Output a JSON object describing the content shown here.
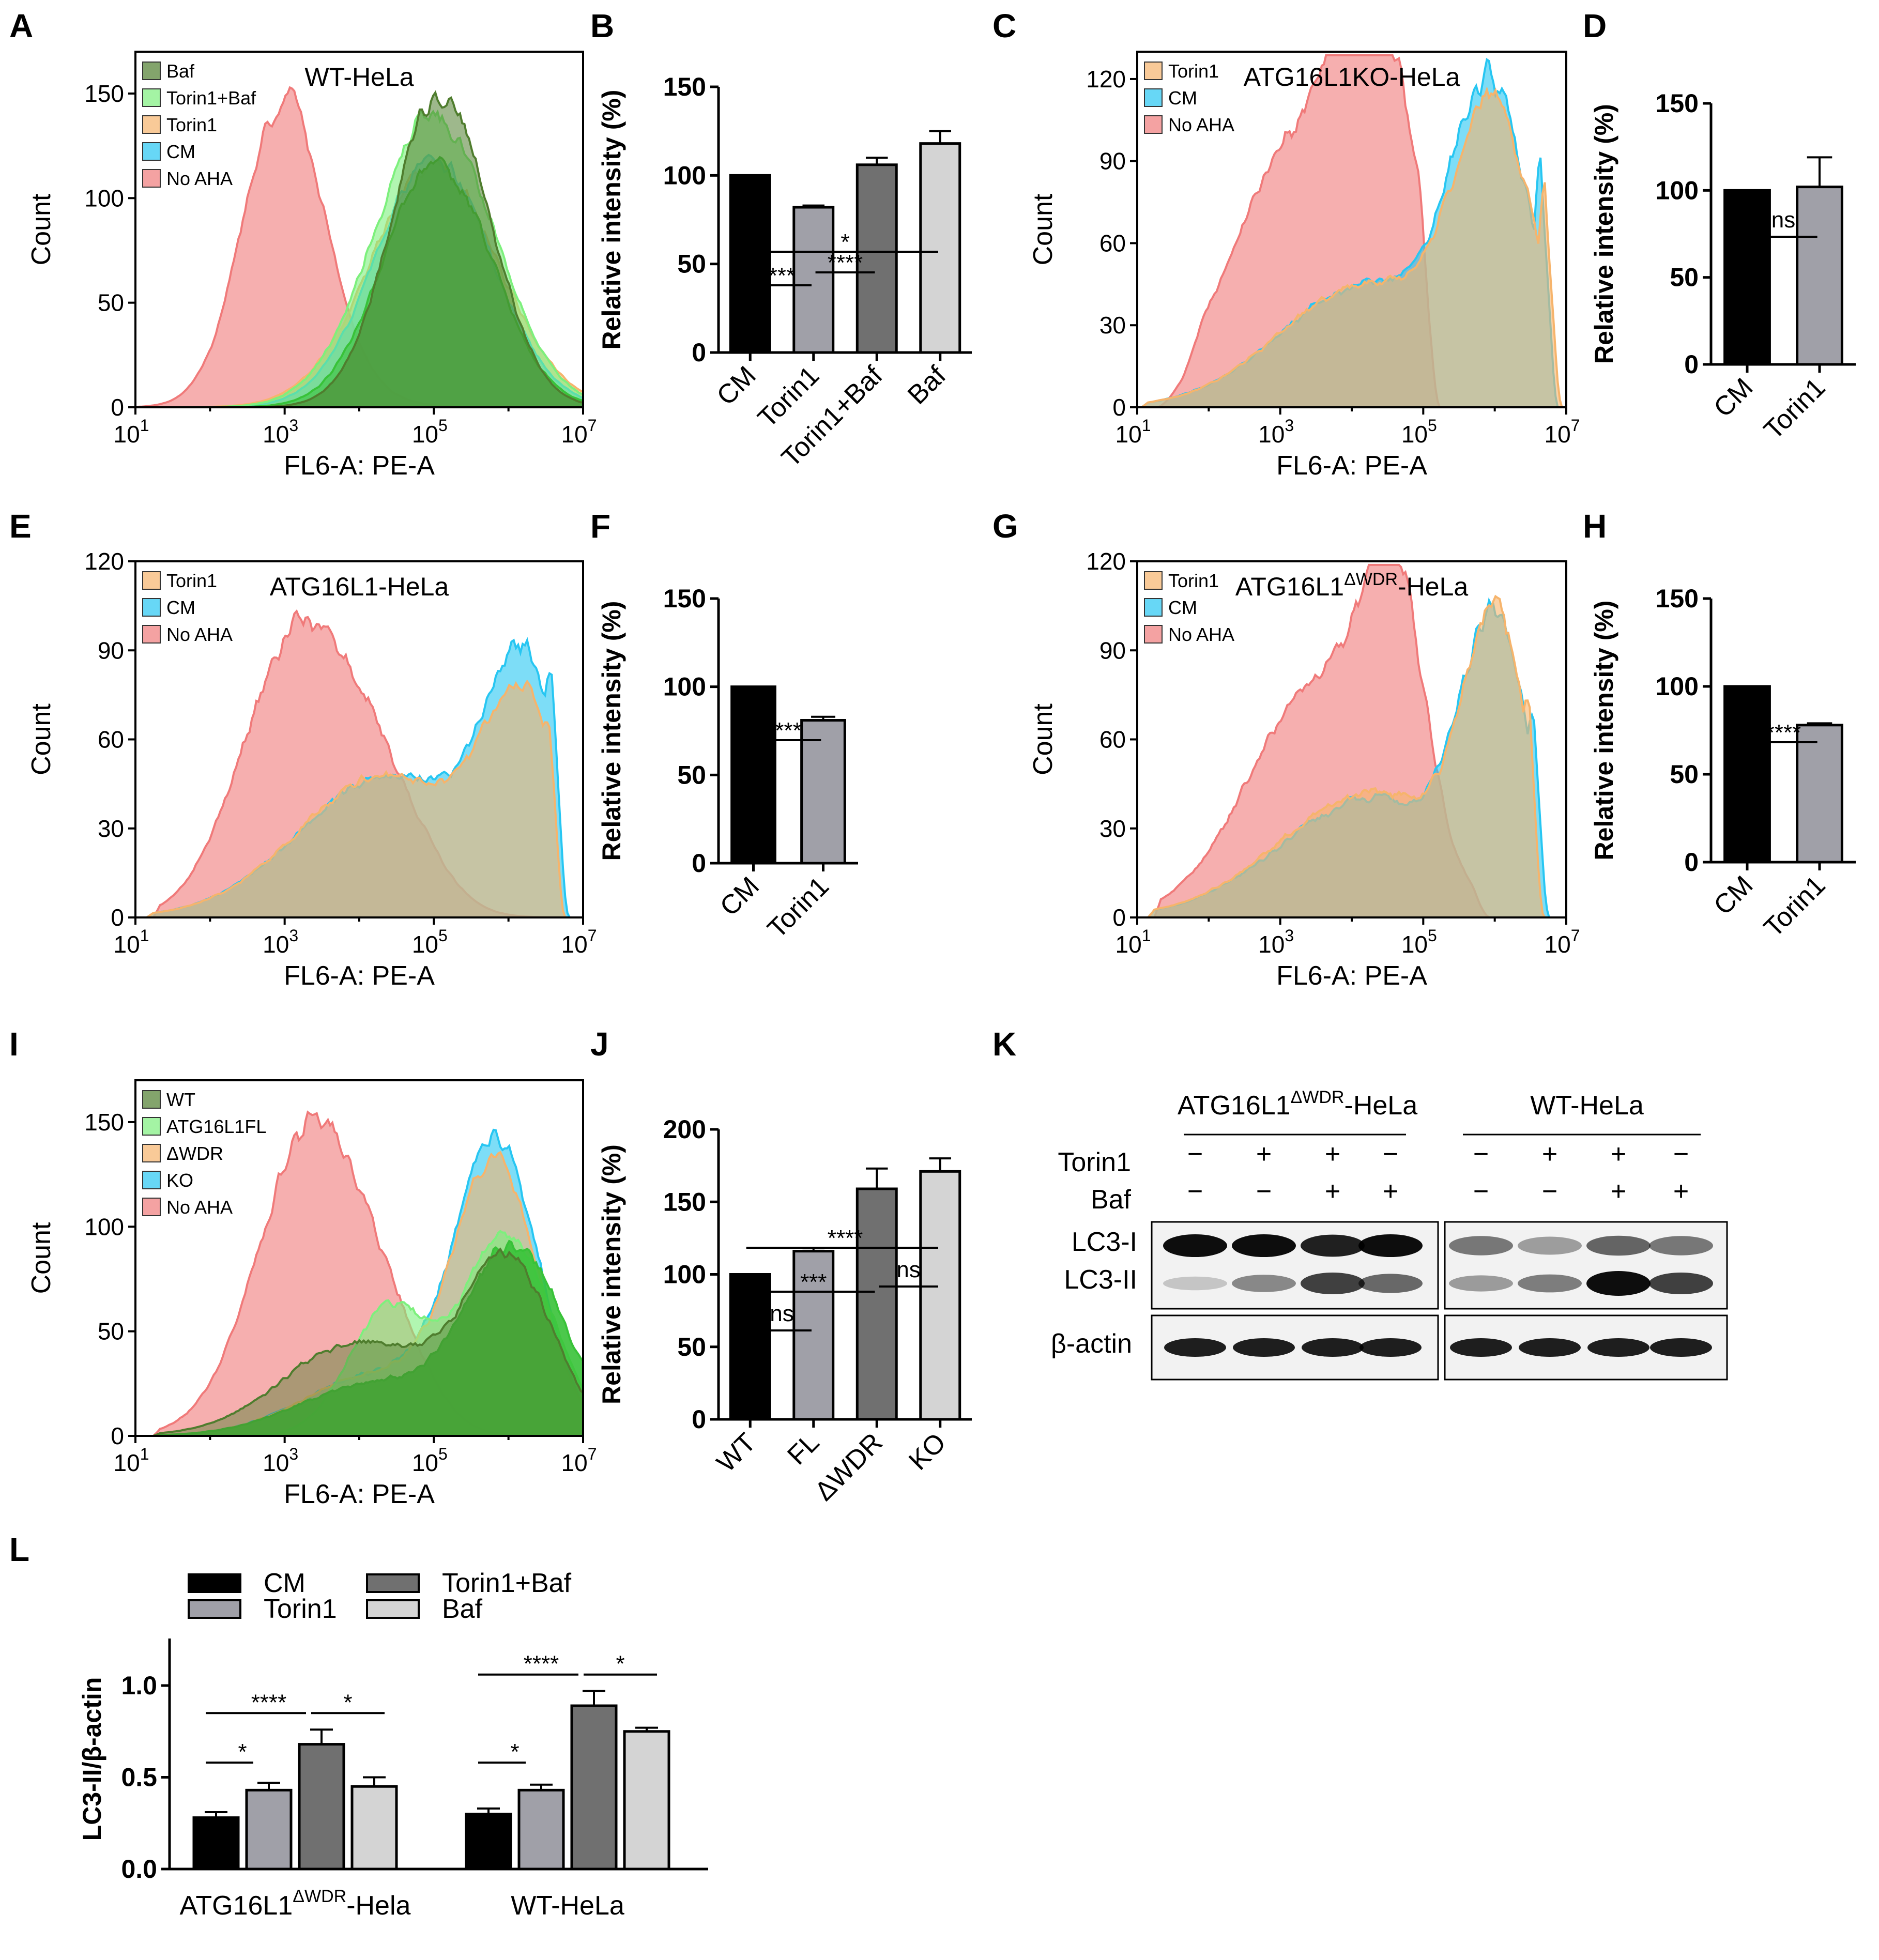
{
  "panel_labels": [
    "A",
    "B",
    "C",
    "D",
    "E",
    "F",
    "G",
    "H",
    "I",
    "J",
    "K",
    "L"
  ],
  "colors": {
    "dkgreen": "#4f7d2e",
    "green": "#38c238",
    "ltgreen": "#7df07d",
    "orange": "#f6b46c",
    "cyan": "#27c6f2",
    "red": "#f07a7a",
    "olive": "#aab48c",
    "black": "#000000",
    "dgray": "#707070",
    "mgray": "#a0a0a8",
    "lgray": "#d4d4d4"
  },
  "chart_data": [
    {
      "id": "A",
      "type": "area",
      "title": "WT-HeLa",
      "xlabel": "FL6-A: PE-A",
      "ylabel": "Count",
      "xticks": [
        {
          "base": "10",
          "exp": "1"
        },
        {
          "base": "10",
          "exp": "3"
        },
        {
          "base": "10",
          "exp": "5"
        },
        {
          "base": "10",
          "exp": "7"
        }
      ],
      "yticks": [
        "0",
        "50",
        "100",
        "150"
      ],
      "ylim": [
        0,
        170
      ],
      "legend": [
        {
          "name": "Baf",
          "color": "#4f7d2e"
        },
        {
          "name": "Torin1+Baf",
          "color": "#7df07d"
        },
        {
          "name": "Torin1",
          "color": "#f6b46c"
        },
        {
          "name": "CM",
          "color": "#27c6f2"
        },
        {
          "name": "No AHA",
          "color": "#f07a7a"
        }
      ]
    },
    {
      "id": "B",
      "type": "bar",
      "ylabel": "Relative intensity (%)",
      "categories": [
        "CM",
        "Torin1",
        "Torin1+Baf",
        "Baf"
      ],
      "values": [
        100,
        82,
        106,
        118
      ],
      "errors": [
        0,
        1,
        4,
        7
      ],
      "ylim": [
        0,
        150
      ],
      "yticks": [
        "0",
        "50",
        "100",
        "150"
      ],
      "significance": [
        "*",
        "***",
        "****"
      ]
    },
    {
      "id": "C",
      "type": "area",
      "title": "ATG16L1KO-HeLa",
      "xlabel": "FL6-A: PE-A",
      "ylabel": "Count",
      "xticks": [
        {
          "base": "10",
          "exp": "1"
        },
        {
          "base": "10",
          "exp": "3"
        },
        {
          "base": "10",
          "exp": "5"
        },
        {
          "base": "10",
          "exp": "7"
        }
      ],
      "yticks": [
        "0",
        "30",
        "60",
        "90",
        "120"
      ],
      "ylim": [
        0,
        130
      ],
      "legend": [
        {
          "name": "Torin1",
          "color": "#f6b46c"
        },
        {
          "name": "CM",
          "color": "#27c6f2"
        },
        {
          "name": "No AHA",
          "color": "#f07a7a"
        }
      ]
    },
    {
      "id": "D",
      "type": "bar",
      "ylabel": "Relative intensity (%)",
      "categories": [
        "CM",
        "Torin1"
      ],
      "values": [
        100,
        102
      ],
      "errors": [
        0,
        17
      ],
      "ylim": [
        0,
        150
      ],
      "yticks": [
        "0",
        "50",
        "100",
        "150"
      ],
      "significance": [
        "ns"
      ]
    },
    {
      "id": "E",
      "type": "area",
      "title": "ATG16L1-HeLa",
      "xlabel": "FL6-A: PE-A",
      "ylabel": "Count",
      "xticks": [
        {
          "base": "10",
          "exp": "1"
        },
        {
          "base": "10",
          "exp": "3"
        },
        {
          "base": "10",
          "exp": "5"
        },
        {
          "base": "10",
          "exp": "7"
        }
      ],
      "yticks": [
        "0",
        "30",
        "60",
        "90",
        "120"
      ],
      "ylim": [
        0,
        120
      ],
      "legend": [
        {
          "name": "Torin1",
          "color": "#f6b46c"
        },
        {
          "name": "CM",
          "color": "#27c6f2"
        },
        {
          "name": "No AHA",
          "color": "#f07a7a"
        }
      ]
    },
    {
      "id": "F",
      "type": "bar",
      "ylabel": "Relative intensity (%)",
      "categories": [
        "CM",
        "Torin1"
      ],
      "values": [
        100,
        81
      ],
      "errors": [
        0,
        2
      ],
      "ylim": [
        0,
        150
      ],
      "yticks": [
        "0",
        "50",
        "100",
        "150"
      ],
      "significance": [
        "***"
      ]
    },
    {
      "id": "G",
      "type": "area",
      "title": "ATG16L1",
      "title_sup": "ΔWDR",
      "title_suffix": "-HeLa",
      "xlabel": "FL6-A: PE-A",
      "ylabel": "Count",
      "xticks": [
        {
          "base": "10",
          "exp": "1"
        },
        {
          "base": "10",
          "exp": "3"
        },
        {
          "base": "10",
          "exp": "5"
        },
        {
          "base": "10",
          "exp": "7"
        }
      ],
      "yticks": [
        "0",
        "30",
        "60",
        "90",
        "120"
      ],
      "ylim": [
        0,
        120
      ],
      "legend": [
        {
          "name": "Torin1",
          "color": "#f6b46c"
        },
        {
          "name": "CM",
          "color": "#27c6f2"
        },
        {
          "name": "No AHA",
          "color": "#f07a7a"
        }
      ]
    },
    {
      "id": "H",
      "type": "bar",
      "ylabel": "Relative intensity (%)",
      "categories": [
        "CM",
        "Torin1"
      ],
      "values": [
        100,
        78
      ],
      "errors": [
        0,
        1
      ],
      "ylim": [
        0,
        150
      ],
      "yticks": [
        "0",
        "50",
        "100",
        "150"
      ],
      "significance": [
        "****"
      ]
    },
    {
      "id": "I",
      "type": "area",
      "title": "",
      "xlabel": "FL6-A: PE-A",
      "ylabel": "Count",
      "xticks": [
        {
          "base": "10",
          "exp": "1"
        },
        {
          "base": "10",
          "exp": "3"
        },
        {
          "base": "10",
          "exp": "5"
        },
        {
          "base": "10",
          "exp": "7"
        }
      ],
      "yticks": [
        "0",
        "50",
        "100",
        "150"
      ],
      "ylim": [
        0,
        170
      ],
      "legend": [
        {
          "name": "WT",
          "color": "#4f7d2e"
        },
        {
          "name": "ATG16L1FL",
          "color": "#7df07d"
        },
        {
          "name": "ΔWDR",
          "color": "#f6b46c"
        },
        {
          "name": "KO",
          "color": "#27c6f2"
        },
        {
          "name": "No AHA",
          "color": "#f07a7a"
        }
      ]
    },
    {
      "id": "J",
      "type": "bar",
      "ylabel": "Relative intensity (%)",
      "categories": [
        "WT",
        "FL",
        "ΔWDR",
        "KO"
      ],
      "values": [
        100,
        116,
        159,
        171
      ],
      "errors": [
        0,
        2,
        14,
        9
      ],
      "ylim": [
        0,
        200
      ],
      "yticks": [
        "0",
        "50",
        "100",
        "150",
        "200"
      ],
      "significance": [
        "****",
        "***",
        "ns",
        "ns"
      ]
    },
    {
      "id": "L",
      "type": "bar",
      "ylabel": "LC3-II/β-actin",
      "groups": [
        "ATG16L1",
        "WT-HeLa"
      ],
      "group_sup": "ΔWDR",
      "group_suffix": "-Hela",
      "series": [
        {
          "name": "CM",
          "values": [
            0.28,
            0.3
          ],
          "errors": [
            0.03,
            0.03
          ]
        },
        {
          "name": "Torin1",
          "values": [
            0.43,
            0.43
          ],
          "errors": [
            0.04,
            0.03
          ]
        },
        {
          "name": "Torin1+Baf",
          "values": [
            0.68,
            0.89
          ],
          "errors": [
            0.08,
            0.08
          ]
        },
        {
          "name": "Baf",
          "values": [
            0.45,
            0.75
          ],
          "errors": [
            0.05,
            0.02
          ]
        }
      ],
      "ylim": [
        0,
        1.2
      ],
      "yticks": [
        "0.0",
        "0.5",
        "1.0"
      ],
      "significance": [
        "*",
        "****",
        "*",
        "*",
        "****",
        "*"
      ]
    }
  ],
  "blot": {
    "id": "K",
    "group1": "ATG16L1",
    "group1_sup": "ΔWDR",
    "group1_suffix": "-HeLa",
    "group2": "WT-HeLa",
    "row_torin": "Torin1",
    "row_baf": "Baf",
    "torin": [
      "−",
      "+",
      "+",
      "−",
      "−",
      "+",
      "+",
      "−"
    ],
    "baf": [
      "−",
      "−",
      "+",
      "+",
      "−",
      "−",
      "+",
      "+"
    ],
    "bands": [
      "LC3-I",
      "LC3-II",
      "β-actin"
    ]
  }
}
